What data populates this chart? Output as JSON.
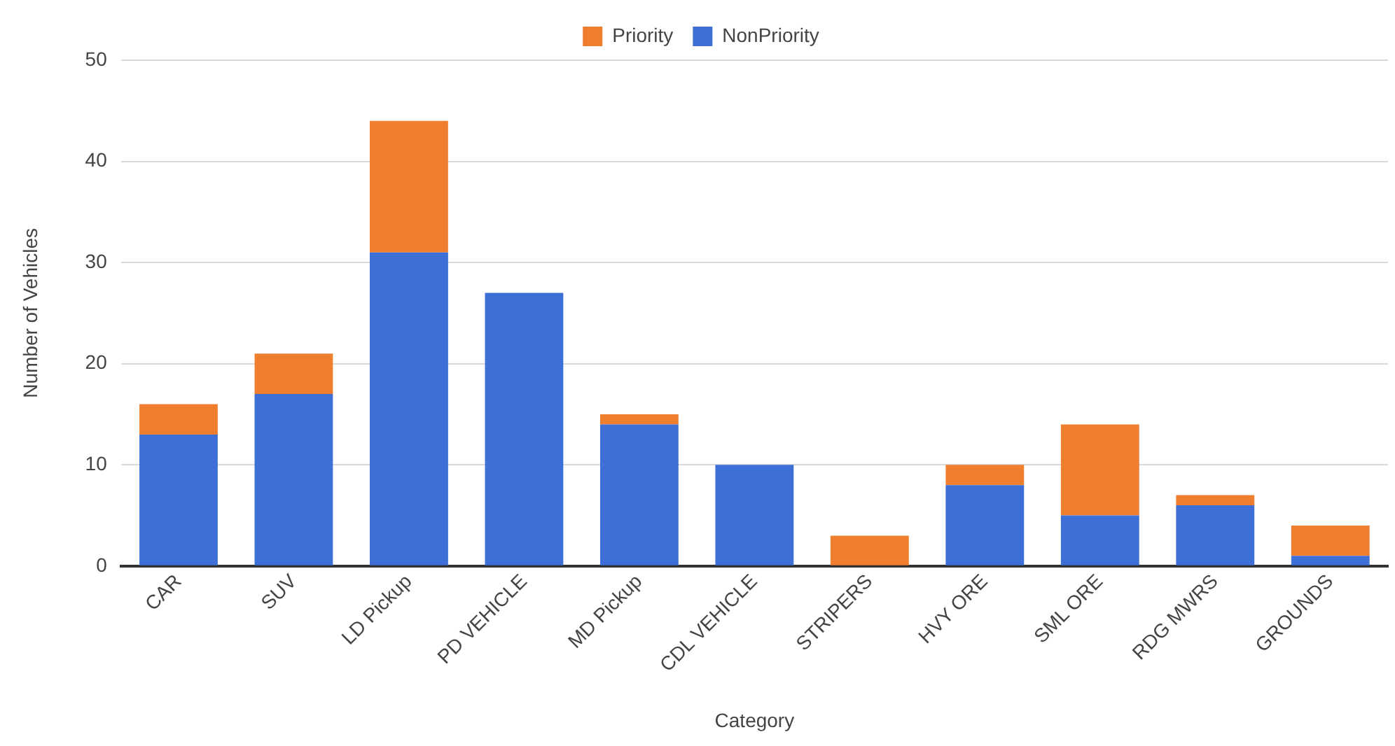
{
  "chart_data": {
    "type": "bar",
    "stacked": true,
    "xlabel": "Category",
    "ylabel": "Number of Vehicles",
    "categories": [
      "CAR",
      "SUV",
      "LD Pickup",
      "PD VEHICLE",
      "MD Pickup",
      "CDL VEHICLE",
      "STRIPERS",
      "HVY ORE",
      "SML ORE",
      "RDG MWRS",
      "GROUNDS"
    ],
    "series": [
      {
        "name": "NonPriority",
        "color": "#3d6fd6",
        "values": [
          13,
          17,
          31,
          27,
          14,
          10,
          0,
          8,
          5,
          6,
          1
        ]
      },
      {
        "name": "Priority",
        "color": "#ef7f2e",
        "values": [
          3,
          4,
          13,
          0,
          1,
          0,
          3,
          2,
          9,
          1,
          3
        ]
      }
    ],
    "ylim": [
      0,
      50
    ],
    "yticks": [
      0,
      10,
      20,
      30,
      40,
      50
    ],
    "grid": "y",
    "legend": "top"
  }
}
